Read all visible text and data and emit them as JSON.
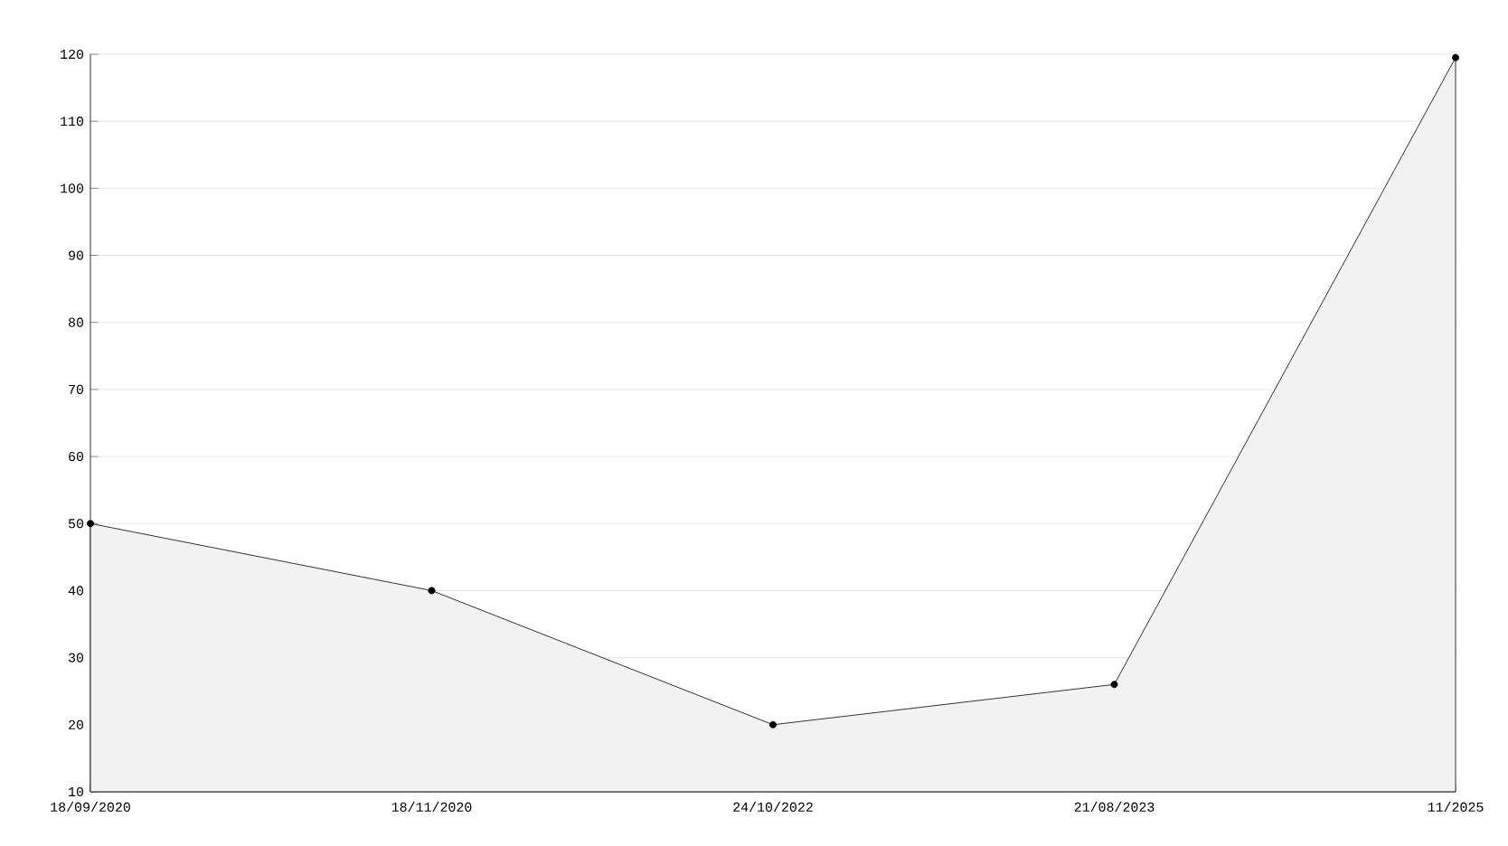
{
  "chart_data": {
    "type": "area",
    "categories": [
      "18/09/2020",
      "18/11/2020",
      "24/10/2022",
      "21/08/2023",
      "11/2025"
    ],
    "series": [
      {
        "color": "#000000",
        "values": [
          50,
          40,
          20,
          26,
          119.5
        ]
      }
    ],
    "ylim": [
      10,
      120
    ],
    "yticks": [
      10,
      20,
      30,
      40,
      50,
      60,
      70,
      80,
      90,
      100,
      110,
      120
    ],
    "grid": "y",
    "marker": "circle",
    "line_style": "solid"
  }
}
